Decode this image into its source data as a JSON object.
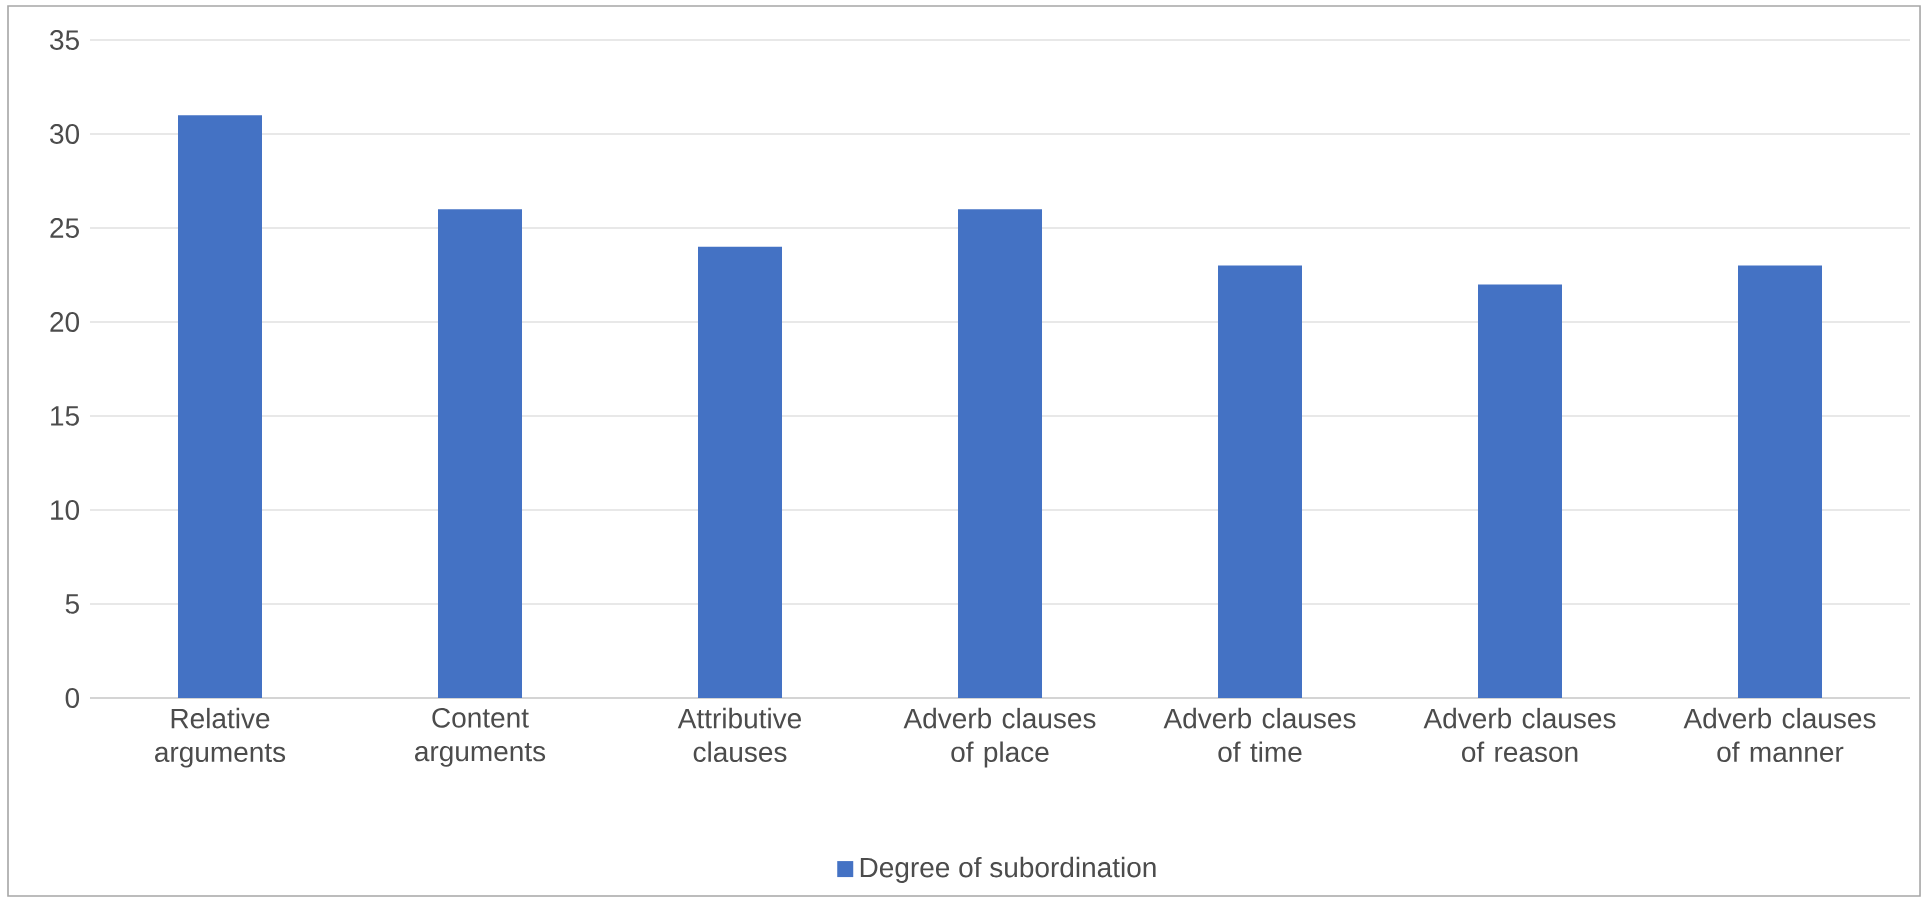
{
  "chart_data": {
    "type": "bar",
    "categories": [
      "Relative arguments",
      "Content arguments",
      "Attributive clauses",
      "Adverb clauses of place",
      "Adverb clauses of time",
      "Adverb clauses of reason",
      "Adverb clauses of manner"
    ],
    "series": [
      {
        "name": "Degree of subordination",
        "color": "#4472c4",
        "values": [
          31,
          26,
          24,
          26,
          23,
          22,
          23
        ]
      }
    ],
    "ylim": [
      0,
      35
    ],
    "yticks": [
      0,
      5,
      10,
      15,
      20,
      25,
      30,
      35
    ],
    "grid": "y",
    "legend": "bottom"
  }
}
